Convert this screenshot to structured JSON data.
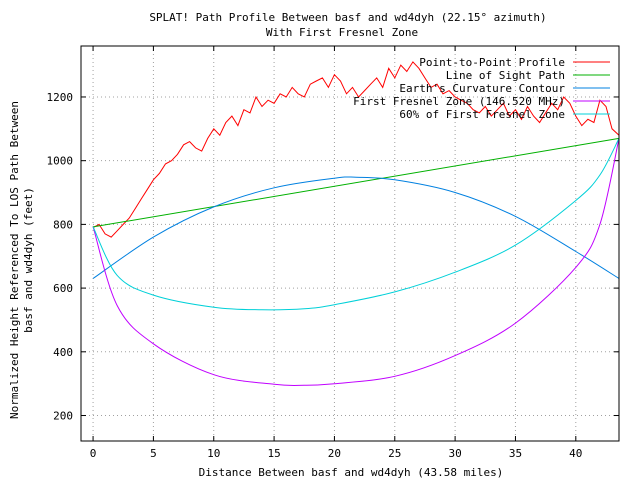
{
  "chart_data": {
    "type": "line",
    "title": "SPLAT! Path Profile Between basf and wd4dyh (22.15° azimuth)",
    "subtitle": "With First Fresnel Zone",
    "xlabel": "Distance Between basf and wd4dyh (43.58 miles)",
    "ylabel_line1": "Normalized Height Referenced To LOS Path Between",
    "ylabel_line2": "basf and wd4dyh (feet)",
    "xlim": [
      -1,
      43.58
    ],
    "ylim": [
      120,
      1360
    ],
    "xticks": [
      0,
      5,
      10,
      15,
      20,
      25,
      30,
      35,
      40
    ],
    "yticks": [
      200,
      400,
      600,
      800,
      1000,
      1200
    ],
    "grid": true,
    "legend_position": "top-right",
    "colors": {
      "profile": "#ff0000",
      "los": "#00b000",
      "earth": "#0080e0",
      "fresnel": "#c000ff",
      "fresnel60": "#00d0d8"
    },
    "series": [
      {
        "key": "profile",
        "name": "Point-to-Point Profile",
        "x": [
          0,
          0.5,
          1,
          1.5,
          2,
          2.5,
          3,
          3.5,
          4,
          4.5,
          5,
          5.5,
          6,
          6.5,
          7,
          7.5,
          8,
          8.5,
          9,
          9.5,
          10,
          10.5,
          11,
          11.5,
          12,
          12.5,
          13,
          13.5,
          14,
          14.5,
          15,
          15.5,
          16,
          16.5,
          17,
          17.5,
          18,
          18.5,
          19,
          19.5,
          20,
          20.5,
          21,
          21.5,
          22,
          22.5,
          23,
          23.5,
          24,
          24.5,
          25,
          25.5,
          26,
          26.5,
          27,
          27.5,
          28,
          28.5,
          29,
          29.5,
          30,
          30.5,
          31,
          31.5,
          32,
          32.5,
          33,
          33.5,
          34,
          34.5,
          35,
          35.5,
          36,
          36.5,
          37,
          37.5,
          38,
          38.5,
          39,
          39.5,
          40,
          40.5,
          41,
          41.5,
          42,
          42.5,
          43,
          43.58
        ],
        "values": [
          790,
          800,
          770,
          760,
          780,
          800,
          820,
          850,
          880,
          910,
          940,
          960,
          990,
          1000,
          1020,
          1050,
          1060,
          1040,
          1030,
          1070,
          1100,
          1080,
          1120,
          1140,
          1110,
          1160,
          1150,
          1200,
          1170,
          1190,
          1180,
          1210,
          1200,
          1230,
          1210,
          1200,
          1240,
          1250,
          1260,
          1230,
          1270,
          1250,
          1210,
          1230,
          1200,
          1220,
          1240,
          1260,
          1230,
          1290,
          1260,
          1300,
          1280,
          1310,
          1290,
          1260,
          1230,
          1240,
          1210,
          1220,
          1200,
          1190,
          1180,
          1160,
          1150,
          1170,
          1140,
          1160,
          1180,
          1140,
          1160,
          1130,
          1170,
          1140,
          1120,
          1150,
          1180,
          1160,
          1200,
          1180,
          1140,
          1110,
          1130,
          1120,
          1190,
          1170,
          1100,
          1080
        ]
      },
      {
        "key": "los",
        "name": "Line of Sight Path",
        "x": [
          0,
          43.58
        ],
        "values": [
          792,
          1070
        ]
      },
      {
        "key": "earth",
        "name": "Earth's Curvature Contour",
        "x": [
          0,
          5,
          10,
          15,
          20,
          21.8,
          25,
          30,
          35,
          40,
          43.58
        ],
        "values": [
          630,
          760,
          855,
          915,
          945,
          948,
          940,
          900,
          825,
          715,
          630
        ]
      },
      {
        "key": "fresnel",
        "name": "First Fresnel Zone (146.520 MHz)",
        "x": [
          0,
          2,
          5,
          10,
          15,
          17.5,
          20,
          25,
          30,
          35,
          40,
          42,
          43.58
        ],
        "values": [
          792,
          545,
          425,
          328,
          298,
          295,
          300,
          323,
          388,
          490,
          665,
          800,
          1070
        ]
      },
      {
        "key": "fresnel60",
        "name": "60% of First Fresnel Zone",
        "x": [
          0,
          2,
          5,
          10,
          14,
          17.5,
          20,
          25,
          30,
          35,
          40,
          42,
          43.58
        ],
        "values": [
          792,
          640,
          578,
          540,
          532,
          535,
          548,
          588,
          650,
          735,
          875,
          955,
          1070
        ]
      }
    ]
  }
}
